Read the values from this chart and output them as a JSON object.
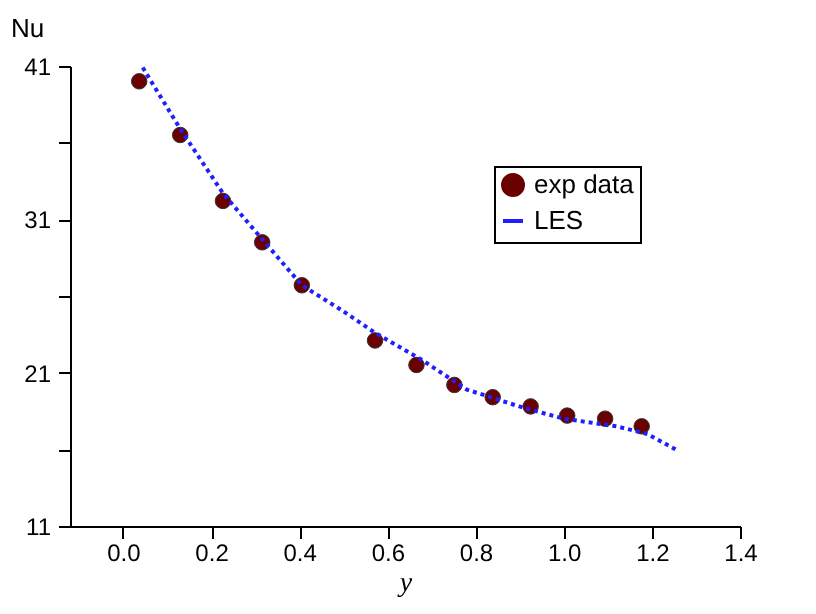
{
  "chart_data": {
    "type": "scatter",
    "xlabel": "y",
    "ylabel": "Nu",
    "xlim": [
      -0.12,
      1.4
    ],
    "xticks": [
      {
        "value": 0,
        "label": "0.0"
      },
      0.2,
      0.4,
      0.6,
      0.8,
      {
        "value": 1,
        "label": "1.0"
      },
      1.2,
      1.4
    ],
    "ylim": [
      11,
      41
    ],
    "yticks": [
      11,
      {
        "value": 16,
        "label": null
      },
      21,
      {
        "value": 26,
        "label": null
      },
      31,
      {
        "value": 36,
        "label": null
      },
      41
    ],
    "grid": false,
    "legend": "top right",
    "series": [
      {
        "name": "exp data",
        "color": "#6b0000",
        "marker": "circle",
        "x": [
          0.037,
          0.13,
          0.227,
          0.316,
          0.406,
          0.572,
          0.666,
          0.752,
          0.839,
          0.925,
          1.008,
          1.094,
          1.177
        ],
        "values": [
          40.0,
          36.5,
          32.2,
          29.5,
          26.7,
          23.1,
          21.5,
          20.2,
          19.4,
          18.8,
          18.2,
          18.0,
          17.5
        ]
      },
      {
        "name": "LES",
        "type": "line",
        "color": "#2020ff",
        "line_style": "dotted",
        "x": [
          0.045,
          0.13,
          0.227,
          0.316,
          0.406,
          0.495,
          0.572,
          0.68,
          0.78,
          0.91,
          1.0,
          1.12,
          1.19,
          1.26
        ],
        "values": [
          40.9,
          36.9,
          32.7,
          29.7,
          26.7,
          25.1,
          23.6,
          21.8,
          19.9,
          18.7,
          18.0,
          17.5,
          17.0,
          15.9
        ]
      }
    ]
  }
}
